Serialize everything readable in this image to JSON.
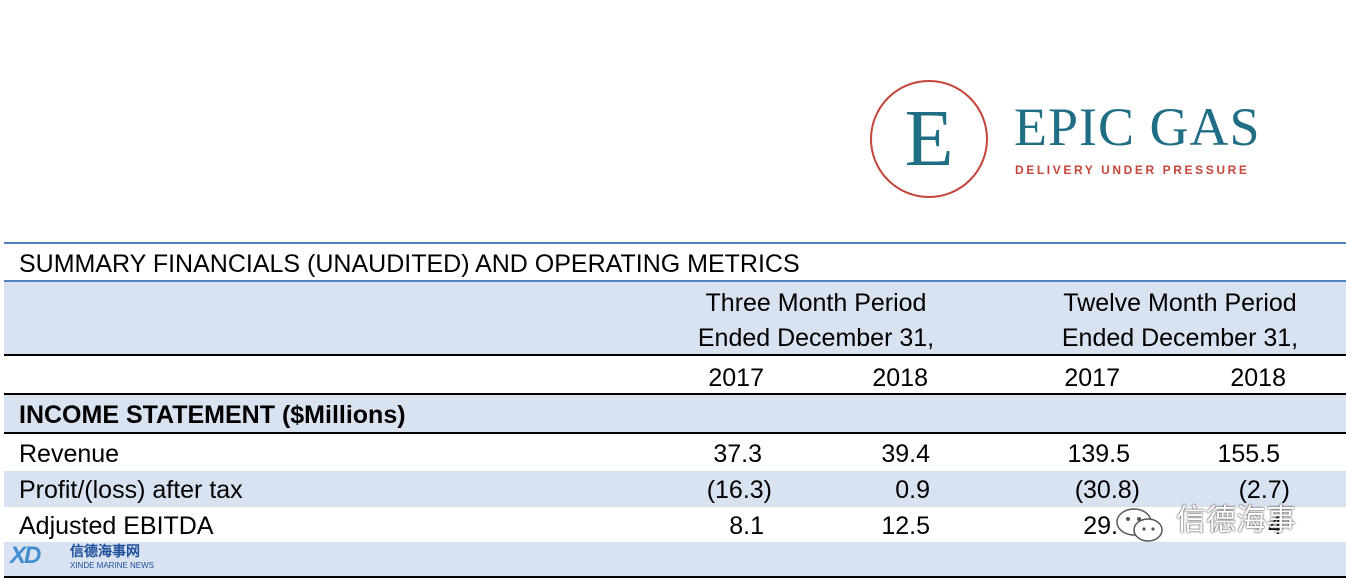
{
  "logo": {
    "letter": "E",
    "name": "EPIC GAS",
    "tagline": "DELIVERY UNDER PRESSURE"
  },
  "table": {
    "title": "SUMMARY FINANCIALS (UNAUDITED) AND OPERATING METRICS",
    "group_headers": [
      {
        "line1": "Three Month Period",
        "line2": "Ended December 31,"
      },
      {
        "line1": "Twelve Month Period",
        "line2": "Ended December 31,"
      }
    ],
    "years": [
      "2017",
      "2018",
      "2017",
      "2018"
    ],
    "section": "INCOME STATEMENT ($Millions)",
    "rows": [
      {
        "label": "Revenue",
        "values": [
          "37.3",
          "39.4",
          "139.5",
          "155.5"
        ]
      },
      {
        "label": "Profit/(loss) after tax",
        "values": [
          "(16.3)",
          "0.9",
          "(30.8)",
          "(2.7)"
        ]
      },
      {
        "label": "Adjusted EBITDA",
        "values": [
          "8.1",
          "12.5",
          "29.",
          "4"
        ]
      }
    ]
  },
  "watermark": {
    "logo_text": "XD",
    "cn": "信德海事网",
    "en": "XINDE MARINE NEWS"
  },
  "wechat": {
    "text": "信德海事"
  },
  "colors": {
    "brand_teal": "#1f6e84",
    "brand_red": "#c4453a",
    "band_blue": "#d9e2f0",
    "rule_blue": "#4f81bd"
  }
}
